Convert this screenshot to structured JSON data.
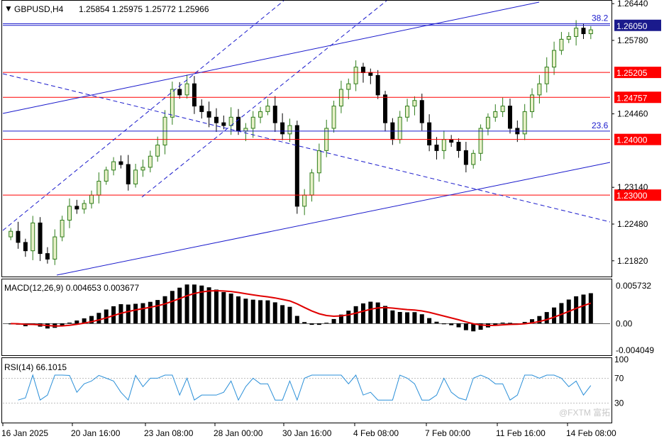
{
  "header": {
    "symbol": "GBPUSD,H4",
    "ohlc": "1.25854 1.25975 1.25772 1.25966"
  },
  "indicators": {
    "macd_label": "MACD(12,26,9) 0.004653 0.003677",
    "rsi_label": "RSI(14) 66.1015"
  },
  "watermark": "@FXTM 富拓",
  "colors": {
    "bull": "#2e7d1a",
    "bear": "#000000",
    "bull_fill": "#e8f0c8",
    "level_red": "#ff0000",
    "trend_blue": "#1a1acc",
    "signal_red": "#e00000",
    "rsi_line": "#2a8fd8",
    "label_blue_bg": "#1a1a8c",
    "label_red_bg": "#ff0000"
  },
  "chart_data": [
    {
      "type": "candlestick",
      "title": "GBPUSD,H4",
      "ylim": [
        1.2155,
        1.2648
      ],
      "y_ticks": [
        "1.26440",
        "1.25780",
        "1.24460",
        "1.23140",
        "1.22480",
        "1.21820"
      ],
      "x_ticks": [
        "16 Jan 2025",
        "20 Jan 16:00",
        "23 Jan 08:00",
        "28 Jan 00:00",
        "30 Jan 16:00",
        "4 Feb 08:00",
        "7 Feb 00:00",
        "11 Feb 16:00",
        "14 Feb 08:00"
      ],
      "close_path": [
        1.2235,
        1.2215,
        1.22,
        1.225,
        1.2195,
        1.2185,
        1.2225,
        1.2255,
        1.228,
        1.2275,
        1.2285,
        1.23,
        1.2325,
        1.2345,
        1.236,
        1.2355,
        1.232,
        1.2345,
        1.235,
        1.237,
        1.239,
        1.244,
        1.249,
        1.248,
        1.25,
        1.246,
        1.245,
        1.244,
        1.243,
        1.2425,
        1.244,
        1.2415,
        1.242,
        1.244,
        1.245,
        1.246,
        1.243,
        1.241,
        1.2425,
        1.228,
        1.23,
        1.234,
        1.238,
        1.242,
        1.246,
        1.249,
        1.25,
        1.253,
        1.252,
        1.2515,
        1.248,
        1.243,
        1.24,
        1.244,
        1.246,
        1.247,
        1.243,
        1.239,
        1.238,
        1.24,
        1.2395,
        1.238,
        1.2355,
        1.2375,
        1.242,
        1.244,
        1.245,
        1.246,
        1.242,
        1.241,
        1.245,
        1.248,
        1.25,
        1.253,
        1.256,
        1.258,
        1.2585,
        1.26,
        1.259,
        1.2597
      ],
      "horizontal_levels": [
        {
          "label": "1.26050",
          "value": 1.2605,
          "color": "blue"
        },
        {
          "label": "1.25205",
          "value": 1.25205,
          "color": "red"
        },
        {
          "label": "1.24757",
          "value": 1.24757,
          "color": "red"
        },
        {
          "label": "1.24000",
          "value": 1.24,
          "color": "red"
        },
        {
          "label": "1.23000",
          "value": 1.23,
          "color": "red"
        }
      ],
      "fibonacci": [
        {
          "label": "38.2",
          "value": 1.2608
        },
        {
          "label": "23.6",
          "value": 1.2415
        }
      ]
    },
    {
      "type": "bar",
      "title": "MACD(12,26,9) 0.004653 0.003677",
      "ylim": [
        -0.0047,
        0.0065
      ],
      "y_ticks": [
        "0.005732",
        "0.00",
        "-0.004049"
      ]
    },
    {
      "type": "line",
      "title": "RSI(14) 66.1015",
      "ylim": [
        0,
        100
      ],
      "y_ticks": [
        "100",
        "70",
        "30"
      ]
    }
  ]
}
